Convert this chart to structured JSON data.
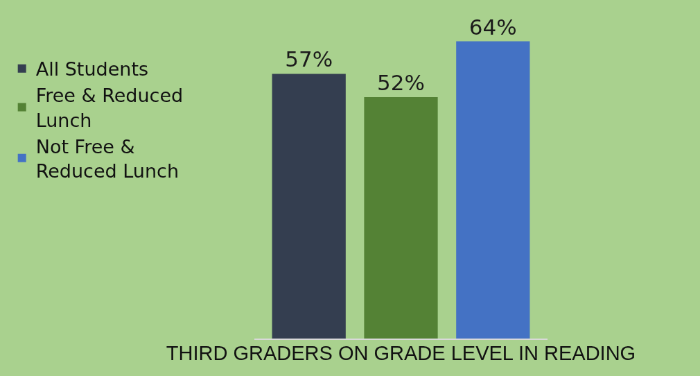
{
  "chart_data": {
    "type": "bar",
    "xlabel": "THIRD GRADERS ON GRADE LEVEL IN READING",
    "categories": [
      null
    ],
    "grid": false,
    "legend": "left",
    "series": [
      {
        "name": "All Students",
        "color": "#343e50",
        "values": [
          57
        ],
        "value_labels": [
          "57%"
        ]
      },
      {
        "name": "Free & Reduced Lunch",
        "color": "#548235",
        "values": [
          52
        ],
        "value_labels": [
          "52%"
        ]
      },
      {
        "name": "Not Free & Reduced Lunch",
        "color": "#4472c4",
        "values": [
          64
        ],
        "value_labels": [
          "64%"
        ]
      }
    ]
  }
}
